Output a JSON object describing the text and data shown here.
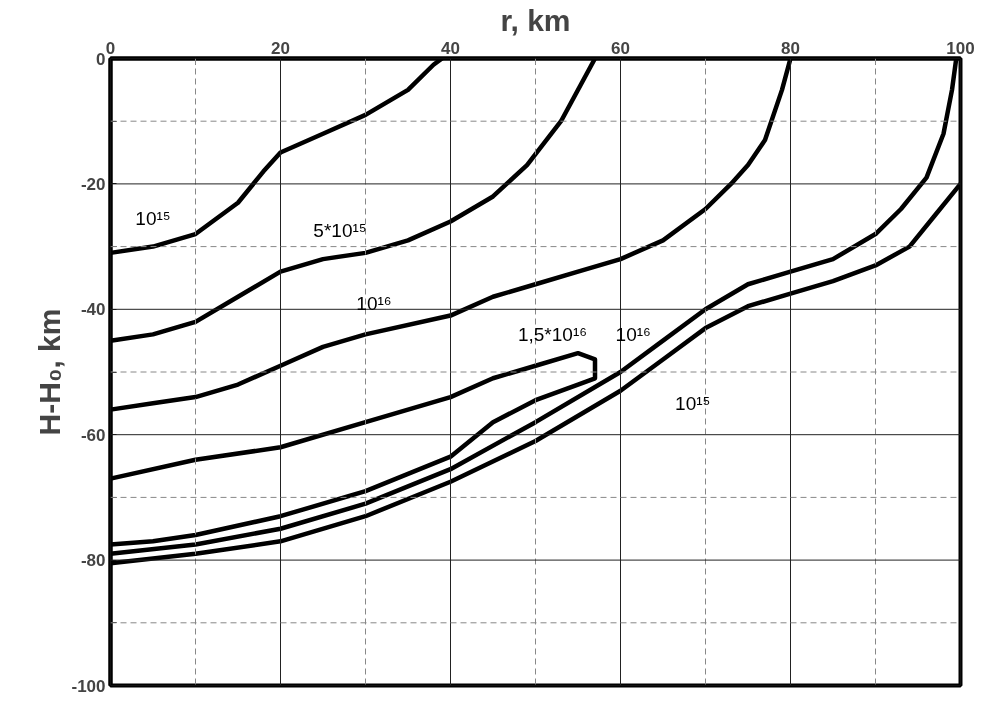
{
  "chart_data": {
    "type": "line",
    "xlabel": "r, km",
    "ylabel": "H-H₀, km",
    "xlim": [
      0,
      100
    ],
    "ylim": [
      -100,
      0
    ],
    "xticks": [
      0,
      {
        "value": 10,
        "label": null
      },
      20,
      {
        "value": 30,
        "label": null
      },
      40,
      {
        "value": 50,
        "label": null
      },
      60,
      {
        "value": 70,
        "label": null
      },
      80,
      {
        "value": 90,
        "label": null
      },
      100
    ],
    "yticks": [
      -100,
      {
        "value": -90,
        "label": null
      },
      -80,
      {
        "value": -70,
        "label": null
      },
      -60,
      {
        "value": -50,
        "label": null
      },
      -40,
      {
        "value": -30,
        "label": null
      },
      -20,
      {
        "value": -10,
        "label": null
      },
      0
    ],
    "grid": true,
    "line_style": "solid",
    "series": [
      {
        "name": "10¹⁵",
        "color": "#000000",
        "x": [
          0,
          5,
          10,
          15,
          18,
          20,
          25,
          30,
          35,
          38,
          39
        ],
        "values": [
          -31,
          -30,
          -28,
          -23,
          -18,
          -15,
          -12,
          -9,
          -5,
          -1,
          0
        ]
      },
      {
        "name": "5*10¹⁵",
        "color": "#000000",
        "x": [
          0,
          5,
          10,
          15,
          20,
          25,
          30,
          35,
          40,
          45,
          49,
          53,
          57
        ],
        "values": [
          -45,
          -44,
          -42,
          -38,
          -34,
          -32,
          -31,
          -29,
          -26,
          -22,
          -17,
          -10,
          0
        ]
      },
      {
        "name": "10¹⁶",
        "color": "#000000",
        "x": [
          0,
          5,
          10,
          15,
          20,
          25,
          30,
          40,
          45,
          50,
          55,
          60,
          65,
          70,
          73,
          75,
          77,
          79,
          80
        ],
        "values": [
          -56,
          -55,
          -54,
          -52,
          -49,
          -46,
          -44,
          -41,
          -38,
          -36,
          -34,
          -32,
          -29,
          -24,
          -20,
          -17,
          -13,
          -5,
          0
        ]
      },
      {
        "name": "1,5*10¹⁶",
        "color": "#000000",
        "x": [
          0,
          10,
          20,
          30,
          40,
          45,
          50,
          55,
          57,
          57,
          55,
          50,
          45,
          40,
          30,
          20,
          10,
          5,
          0
        ],
        "values": [
          -67,
          -64,
          -62,
          -58,
          -54,
          -51,
          -49,
          -47,
          -48,
          -51,
          -52,
          -54.5,
          -58,
          -63.5,
          -69,
          -73,
          -76,
          -77,
          -77.5
        ]
      },
      {
        "name": "10¹⁶",
        "color": "#000000",
        "x": [
          0,
          10,
          20,
          30,
          40,
          50,
          60,
          65,
          70,
          75,
          80,
          85,
          90,
          93,
          96,
          98,
          99,
          99.5
        ],
        "values": [
          -79,
          -77.5,
          -75,
          -71,
          -65.5,
          -58,
          -50,
          -45,
          -40,
          -36,
          -34,
          -32,
          -28,
          -24,
          -19,
          -12,
          -5,
          0
        ]
      },
      {
        "name": "10¹⁵",
        "color": "#000000",
        "x": [
          0,
          10,
          20,
          30,
          40,
          50,
          60,
          65,
          70,
          75,
          80,
          85,
          90,
          94,
          97,
          100
        ],
        "values": [
          -80.5,
          -79,
          -77,
          -73,
          -67.5,
          -61,
          -53,
          -48,
          -43,
          -39.5,
          -37.5,
          -35.5,
          -33,
          -30,
          -25,
          -20
        ]
      }
    ]
  }
}
